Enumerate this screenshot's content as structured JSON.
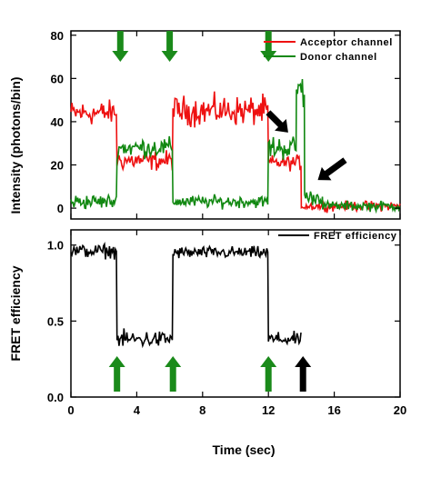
{
  "chart_data": [
    {
      "type": "line",
      "panel": "top",
      "ylabel": "Intensity (photons/bin)",
      "xlim": [
        0,
        20
      ],
      "ylim": [
        -5,
        82
      ],
      "yticks": [
        0,
        20,
        40,
        60,
        80
      ],
      "colors": {
        "acceptor": "#ee1111",
        "donor": "#118811",
        "arrow_green": "#1a8a1a",
        "arrow_black": "#000000"
      },
      "legend": [
        "Acceptor channel",
        "Donor channel"
      ],
      "series": [
        {
          "name": "Acceptor channel",
          "segments": [
            {
              "x": [
                0,
                2.8
              ],
              "mean": 44,
              "noise": 5
            },
            {
              "x": [
                2.8,
                6.2
              ],
              "mean": 22,
              "noise": 4
            },
            {
              "x": [
                6.2,
                12.0
              ],
              "mean": 45,
              "noise": 6
            },
            {
              "x": [
                12.0,
                14.0
              ],
              "mean": 21,
              "noise": 3
            },
            {
              "x": [
                14.0,
                20.0
              ],
              "mean": 1,
              "noise": 2
            }
          ]
        },
        {
          "name": "Donor channel",
          "segments": [
            {
              "x": [
                0,
                2.8
              ],
              "mean": 3,
              "noise": 3
            },
            {
              "x": [
                2.8,
                6.2
              ],
              "mean": 28,
              "noise": 4
            },
            {
              "x": [
                6.2,
                12.0
              ],
              "mean": 3,
              "noise": 2.5
            },
            {
              "x": [
                12.0,
                13.7
              ],
              "mean": 28,
              "noise": 5
            },
            {
              "x": [
                13.7,
                14.2
              ],
              "mean": 55,
              "noise": 8
            },
            {
              "x": [
                14.2,
                15.3
              ],
              "mean": 5,
              "noise": 3
            },
            {
              "x": [
                15.3,
                20.0
              ],
              "mean": 1,
              "noise": 2
            }
          ]
        }
      ],
      "annotations": [
        {
          "type": "green-arrow-down",
          "x": 3.0
        },
        {
          "type": "green-arrow-down",
          "x": 6.0
        },
        {
          "type": "green-arrow-down",
          "x": 12.0
        },
        {
          "type": "black-arrow",
          "x": 13.2,
          "y": 35
        },
        {
          "type": "black-arrow",
          "x": 15.0,
          "y": 13
        }
      ]
    },
    {
      "type": "line",
      "panel": "bottom",
      "xlabel": "Time (sec)",
      "ylabel": "FRET efficiency",
      "xlim": [
        0,
        20
      ],
      "ylim": [
        0.0,
        1.1
      ],
      "xticks": [
        0,
        4,
        8,
        12,
        16,
        20
      ],
      "yticks": [
        "0.0",
        "0.5",
        "1.0"
      ],
      "xtick_labels": [
        "0",
        "4",
        "8",
        "12",
        "16",
        "20"
      ],
      "legend": [
        "FRET efficiency"
      ],
      "series": [
        {
          "name": "FRET efficiency",
          "segments": [
            {
              "x": [
                0,
                2.8
              ],
              "mean": 0.96,
              "noise": 0.04
            },
            {
              "x": [
                2.8,
                6.2
              ],
              "mean": 0.38,
              "noise": 0.05
            },
            {
              "x": [
                6.2,
                12.0
              ],
              "mean": 0.95,
              "noise": 0.035
            },
            {
              "x": [
                12.0,
                14.0
              ],
              "mean": 0.38,
              "noise": 0.04
            }
          ]
        }
      ],
      "annotations": [
        {
          "type": "green-arrow-up",
          "x": 2.8
        },
        {
          "type": "green-arrow-up",
          "x": 6.2
        },
        {
          "type": "green-arrow-up",
          "x": 12.0
        },
        {
          "type": "black-arrow-up",
          "x": 14.1
        }
      ]
    }
  ]
}
